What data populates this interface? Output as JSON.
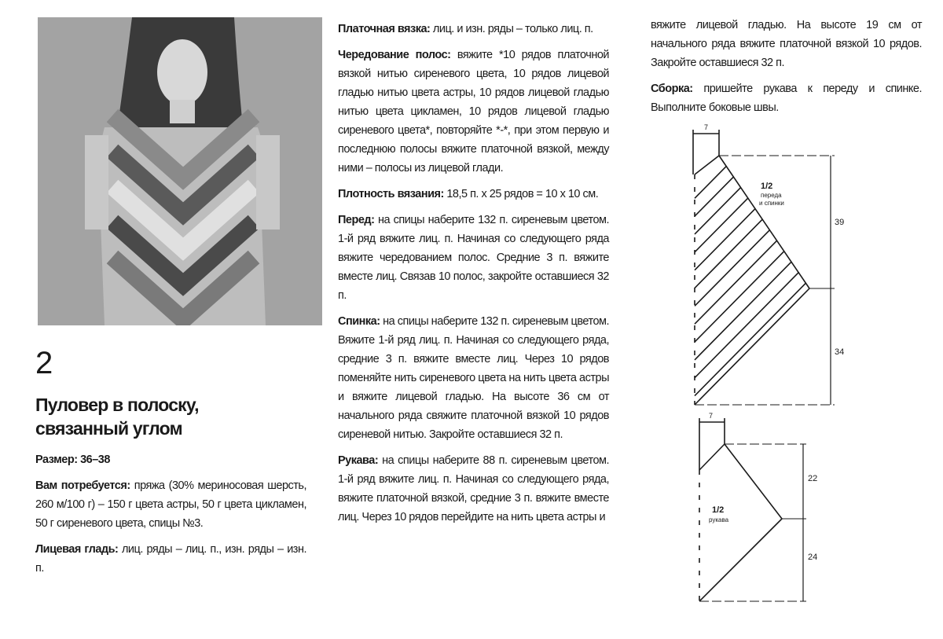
{
  "pattern_number": "2",
  "title_line1": "Пуловер в полоску,",
  "title_line2": "связанный углом",
  "left_column": {
    "size_label": "Размер:",
    "size_value": "36–38",
    "materials_label": "Вам потребуется:",
    "materials_text": "пряжа (30% мериносовая шерсть, 260 м/100 г) – 150 г цвета астры, 50 г цвета цикламен, 50 г сиреневого цвета, спицы №3.",
    "stockinette_label": "Лицевая гладь:",
    "stockinette_text": "лиц. ряды – лиц. п., изн. ряды – изн. п."
  },
  "middle_column": {
    "garter_label": "Платочная вязка:",
    "garter_text": "лиц. и изн. ряды – только лиц. п.",
    "stripes_label": "Чередование полос:",
    "stripes_text": "вяжите *10 рядов платочной вязкой нитью сиреневого цвета, 10 рядов лицевой гладью нитью цвета астры, 10 рядов лицевой гладью нитью цвета цикламен, 10 рядов лицевой гладью сиреневого цвета*, повторяйте *-*, при этом первую и последнюю полосы вяжите платочной вязкой, между ними – полосы из лицевой глади.",
    "gauge_label": "Плотность вязания:",
    "gauge_text": "18,5 п. x 25 рядов = 10 x 10 см.",
    "front_label": "Перед:",
    "front_text": "на спицы наберите 132 п. сиреневым цветом. 1-й ряд вяжите лиц. п. Начиная со следующего ряда вяжите чередованием полос. Средние 3 п. вяжите вместе лиц. Связав 10 полос, закройте оставшиеся 32 п.",
    "back_label": "Спинка:",
    "back_text": "на спицы наберите 132 п. сиреневым цветом. Вяжите 1-й ряд лиц. п. Начиная со следующего ряда, средние 3 п. вяжите вместе лиц. Через 10 рядов поменяйте нить сиреневого цвета на нить цвета астры и вяжите лицевой гладью. На высоте 36 см от начального ряда свяжите платочной вязкой 10 рядов сиреневой нитью. Закройте оставшиеся 32 п.",
    "sleeves_label": "Рукава:",
    "sleeves_text": "на спицы наберите 88 п. сиреневым цветом. 1-й ряд вяжите лиц. п. Начиная со следующего ряда, вяжите платочной вязкой, средние 3 п. вяжите вместе лиц. Через 10 рядов перейдите на нить цвета астры и"
  },
  "right_column": {
    "sleeves_cont": "вяжите лицевой гладью. На высоте 19 см от начального ряда вяжите платочной вязкой 10 рядов. Закройте оставшиеся 32 п.",
    "assembly_label": "Сборка:",
    "assembly_text": "пришейте рукава к переду и спинке. Выполните боковые швы."
  },
  "schematic_body": {
    "label_line1": "1/2",
    "label_line2": "переда",
    "label_line3": "и спинки",
    "width_top": "7",
    "height_upper": "39",
    "height_lower": "34"
  },
  "schematic_sleeve": {
    "label_line1": "1/2",
    "label_line2": "рукава",
    "width_top": "7",
    "height_upper": "22",
    "height_lower": "24"
  }
}
